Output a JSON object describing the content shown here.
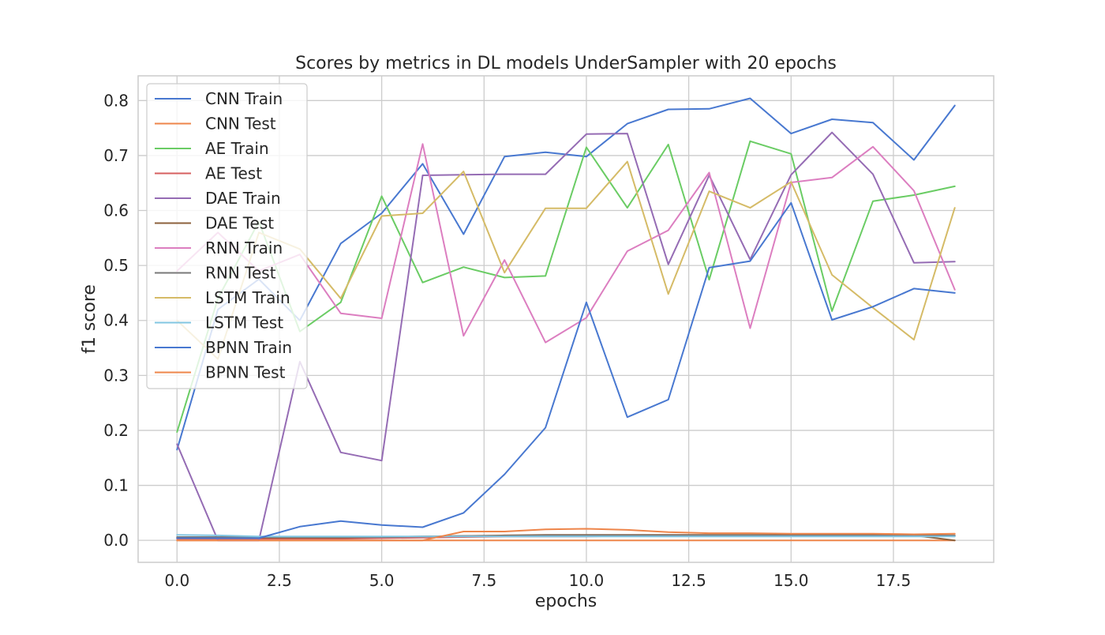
{
  "chart_data": {
    "type": "line",
    "title": "Scores by metrics in DL models UnderSampler with 20 epochs",
    "xlabel": "epochs",
    "ylabel": "f1 score",
    "xlim": [
      -0.95,
      19.95
    ],
    "ylim": [
      -0.04,
      0.845
    ],
    "xticks": [
      0.0,
      2.5,
      5.0,
      7.5,
      10.0,
      12.5,
      15.0,
      17.5
    ],
    "xtick_labels": [
      "0.0",
      "2.5",
      "5.0",
      "7.5",
      "10.0",
      "12.5",
      "15.0",
      "17.5"
    ],
    "yticks": [
      0.0,
      0.1,
      0.2,
      0.3,
      0.4,
      0.5,
      0.6,
      0.7,
      0.8
    ],
    "ytick_labels": [
      "0.0",
      "0.1",
      "0.2",
      "0.3",
      "0.4",
      "0.5",
      "0.6",
      "0.7",
      "0.8"
    ],
    "grid": true,
    "legend_position": "upper-left",
    "x": [
      0,
      1,
      2,
      3,
      4,
      5,
      6,
      7,
      8,
      9,
      10,
      11,
      12,
      13,
      14,
      15,
      16,
      17,
      18,
      19
    ],
    "series": [
      {
        "name": "CNN Train",
        "color": "#4878d0",
        "values": [
          0.165,
          0.42,
          0.475,
          0.4,
          0.54,
          0.595,
          0.685,
          0.557,
          0.698,
          0.706,
          0.698,
          0.758,
          0.784,
          0.785,
          0.804,
          0.74,
          0.766,
          0.76,
          0.692,
          0.791
        ]
      },
      {
        "name": "CNN Test",
        "color": "#ee854a",
        "values": [
          0.0,
          0.0,
          0.0,
          0.0,
          0.0,
          0.0,
          0.0,
          0.0,
          0.0,
          0.0,
          0.0,
          0.0,
          0.0,
          0.0,
          0.0,
          0.0,
          0.0,
          0.0,
          0.0,
          0.0
        ]
      },
      {
        "name": "AE Train",
        "color": "#6acc64",
        "values": [
          0.197,
          0.44,
          0.58,
          0.38,
          0.433,
          0.626,
          0.469,
          0.497,
          0.478,
          0.481,
          0.715,
          0.605,
          0.72,
          0.474,
          0.726,
          0.703,
          0.417,
          0.617,
          0.628,
          0.644
        ]
      },
      {
        "name": "AE Test",
        "color": "#d65f5f",
        "values": [
          0.003,
          0.003,
          0.003,
          0.003,
          0.003,
          0.004,
          0.005,
          0.006,
          0.007,
          0.007,
          0.007,
          0.008,
          0.008,
          0.008,
          0.008,
          0.008,
          0.008,
          0.008,
          0.008,
          0.008
        ]
      },
      {
        "name": "DAE Train",
        "color": "#956cb4",
        "values": [
          0.175,
          0.0,
          0.0,
          0.325,
          0.16,
          0.145,
          0.664,
          0.665,
          0.666,
          0.666,
          0.739,
          0.74,
          0.502,
          0.664,
          0.511,
          0.665,
          0.742,
          0.666,
          0.505,
          0.507
        ]
      },
      {
        "name": "DAE Test",
        "color": "#8c613c",
        "values": [
          0.005,
          0.005,
          0.005,
          0.005,
          0.005,
          0.006,
          0.007,
          0.008,
          0.009,
          0.01,
          0.01,
          0.01,
          0.01,
          0.01,
          0.01,
          0.01,
          0.01,
          0.01,
          0.009,
          0.0
        ]
      },
      {
        "name": "RNN Train",
        "color": "#dc7ec0",
        "values": [
          0.49,
          0.56,
          0.49,
          0.52,
          0.413,
          0.404,
          0.721,
          0.372,
          0.51,
          0.36,
          0.405,
          0.526,
          0.564,
          0.669,
          0.386,
          0.651,
          0.66,
          0.716,
          0.636,
          0.456
        ]
      },
      {
        "name": "RNN Test",
        "color": "#797979",
        "values": [
          0.006,
          0.006,
          0.006,
          0.006,
          0.006,
          0.006,
          0.007,
          0.008,
          0.008,
          0.009,
          0.009,
          0.009,
          0.009,
          0.009,
          0.009,
          0.009,
          0.009,
          0.009,
          0.009,
          0.009
        ]
      },
      {
        "name": "LSTM Train",
        "color": "#d5bb67",
        "values": [
          0.4,
          0.33,
          0.56,
          0.53,
          0.44,
          0.59,
          0.595,
          0.671,
          0.487,
          0.604,
          0.604,
          0.689,
          0.448,
          0.635,
          0.605,
          0.652,
          0.483,
          0.423,
          0.365,
          0.605
        ]
      },
      {
        "name": "LSTM Test",
        "color": "#82c6e2",
        "values": [
          0.01,
          0.009,
          0.007,
          0.007,
          0.007,
          0.007,
          0.007,
          0.007,
          0.007,
          0.007,
          0.007,
          0.007,
          0.007,
          0.007,
          0.007,
          0.007,
          0.007,
          0.007,
          0.007,
          0.007
        ]
      },
      {
        "name": "BPNN Train",
        "color": "#4878d0",
        "values": [
          0.004,
          0.004,
          0.004,
          0.025,
          0.035,
          0.028,
          0.024,
          0.05,
          0.12,
          0.205,
          0.433,
          0.224,
          0.256,
          0.496,
          0.508,
          0.614,
          0.401,
          0.425,
          0.458,
          0.45
        ]
      },
      {
        "name": "BPNN Test",
        "color": "#ee854a",
        "values": [
          0.0,
          0.0,
          0.0,
          0.0,
          0.0,
          0.0,
          0.0,
          0.016,
          0.016,
          0.02,
          0.021,
          0.019,
          0.015,
          0.013,
          0.013,
          0.012,
          0.012,
          0.012,
          0.011,
          0.012
        ]
      }
    ]
  }
}
